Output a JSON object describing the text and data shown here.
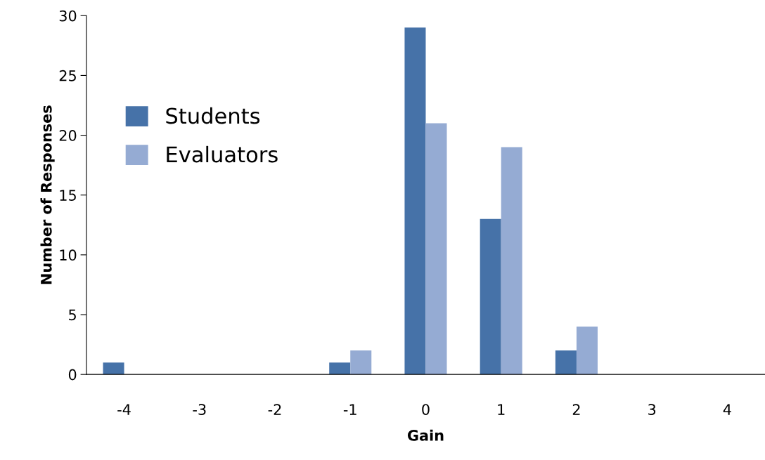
{
  "chart_data": {
    "type": "bar",
    "xlabel": "Gain",
    "ylabel": "Number of Responses",
    "categories": [
      "-4",
      "-3",
      "-2",
      "-1",
      "0",
      "1",
      "2",
      "3",
      "4"
    ],
    "series": [
      {
        "name": "Students",
        "color": "#4672a8",
        "values": [
          1,
          0,
          0,
          1,
          29,
          13,
          2,
          0,
          0
        ]
      },
      {
        "name": "Evaluators",
        "color": "#95abd3",
        "values": [
          0,
          0,
          0,
          2,
          21,
          19,
          4,
          0,
          0
        ]
      }
    ],
    "ylim": [
      0,
      30
    ],
    "yticks": [
      0,
      5,
      10,
      15,
      20,
      25,
      30
    ],
    "grid": false,
    "legend": "top left"
  }
}
